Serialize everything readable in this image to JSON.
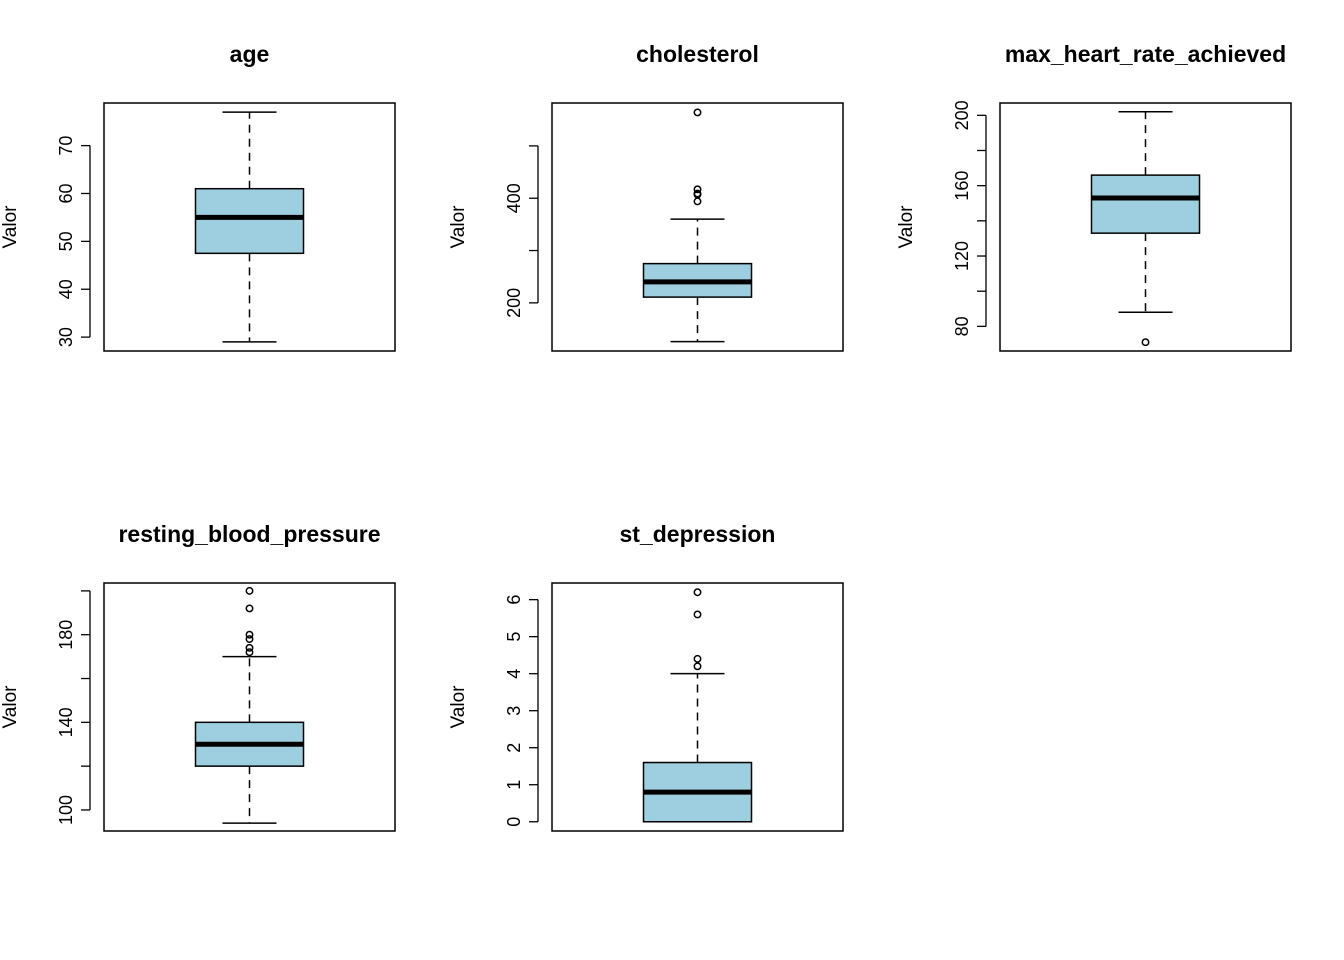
{
  "chart_data": [
    {
      "type": "box",
      "title": "age",
      "ylabel": "Valor",
      "ylim": [
        27.1,
        78.9
      ],
      "ticks": [
        30,
        40,
        50,
        60,
        70
      ],
      "tick_labels": [
        "30",
        "40",
        "50",
        "60",
        "70"
      ],
      "whisker_low": 29,
      "q1": 47.5,
      "median": 55,
      "q3": 61,
      "whisker_high": 77,
      "outliers": []
    },
    {
      "type": "box",
      "title": "cholesterol",
      "ylabel": "Valor",
      "ylim": [
        108,
        582
      ],
      "ticks": [
        200,
        300,
        400,
        500
      ],
      "tick_labels": [
        "200",
        "",
        "400",
        ""
      ],
      "whisker_low": 126,
      "q1": 211,
      "median": 240,
      "q3": 275,
      "whisker_high": 360,
      "outliers": [
        394,
        407,
        409,
        417,
        564
      ]
    },
    {
      "type": "box",
      "title": "max_heart_rate_achieved",
      "ylabel": "Valor",
      "ylim": [
        66,
        207
      ],
      "ticks": [
        80,
        100,
        120,
        140,
        160,
        180,
        200
      ],
      "tick_labels": [
        "80",
        "",
        "120",
        "",
        "160",
        "",
        "200"
      ],
      "whisker_low": 88,
      "q1": 133,
      "median": 153,
      "q3": 166,
      "whisker_high": 202,
      "outliers": [
        71
      ]
    },
    {
      "type": "box",
      "title": "resting_blood_pressure",
      "ylabel": "Valor",
      "ylim": [
        90.4,
        203.6
      ],
      "ticks": [
        100,
        120,
        140,
        160,
        180,
        200
      ],
      "tick_labels": [
        "100",
        "",
        "140",
        "",
        "180",
        ""
      ],
      "whisker_low": 94,
      "q1": 120,
      "median": 130,
      "q3": 140,
      "whisker_high": 170,
      "outliers": [
        172,
        174,
        178,
        180,
        192,
        200
      ]
    },
    {
      "type": "box",
      "title": "st_depression",
      "ylabel": "Valor",
      "ylim": [
        -0.25,
        6.45
      ],
      "ticks": [
        0,
        1,
        2,
        3,
        4,
        5,
        6
      ],
      "tick_labels": [
        "0",
        "1",
        "2",
        "3",
        "4",
        "5",
        "6"
      ],
      "whisker_low": 0,
      "q1": 0,
      "median": 0.8,
      "q3": 1.6,
      "whisker_high": 4.0,
      "outliers": [
        4.2,
        4.4,
        5.6,
        6.2
      ]
    }
  ],
  "style": {
    "box_fill": "#9ecfe0",
    "stroke": "#000000"
  }
}
